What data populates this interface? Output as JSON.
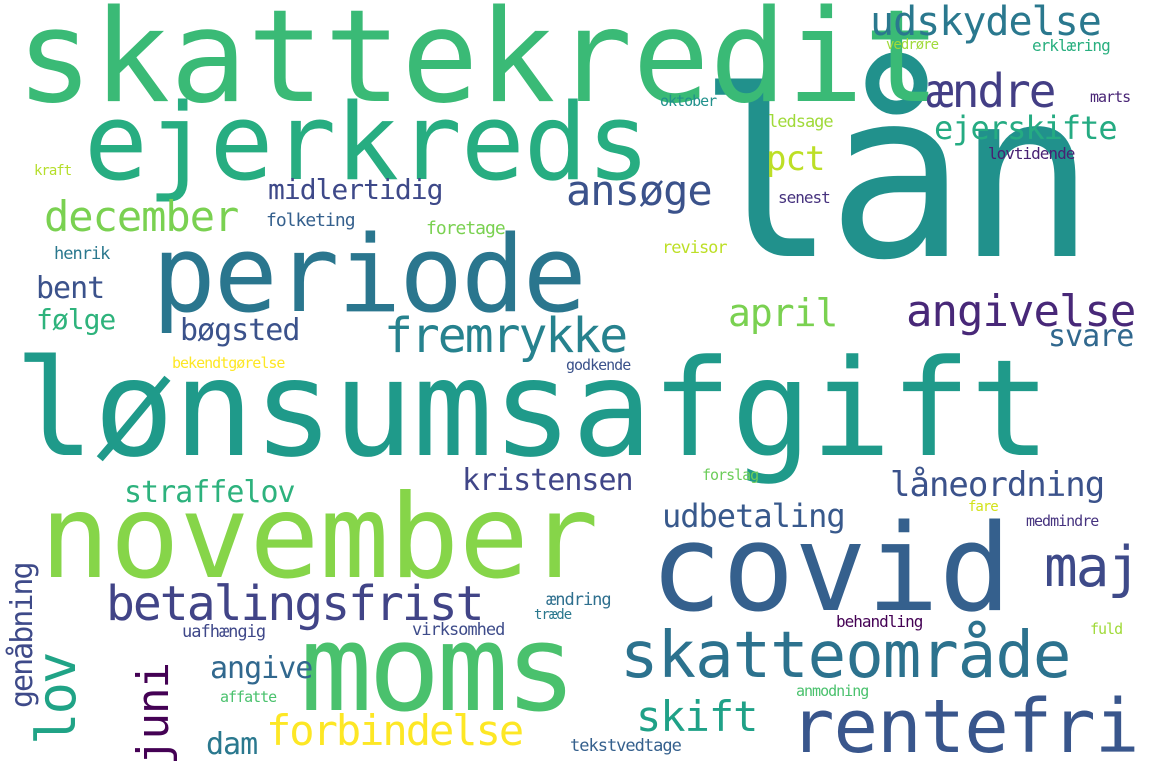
{
  "words": {
    "laan": {
      "text": "lån",
      "color": "#21918c"
    },
    "lonsumsafgift": {
      "text": "lønsumsafgift",
      "color": "#1f9a8a"
    },
    "skattekredit": {
      "text": "skattekredit",
      "color": "#3aba76"
    },
    "november": {
      "text": "november",
      "color": "#86d549"
    },
    "covid": {
      "text": "covid",
      "color": "#35608d"
    },
    "ejerkreds": {
      "text": "ejerkreds",
      "color": "#27ad81"
    },
    "periode": {
      "text": "periode",
      "color": "#2a768e"
    },
    "moms": {
      "text": "moms",
      "color": "#4ac16d"
    },
    "skatteomraade": {
      "text": "skatteområde",
      "color": "#2c728e"
    },
    "rentefri": {
      "text": "rentefri",
      "color": "#39568c"
    },
    "betalingsfrist": {
      "text": "betalingsfrist",
      "color": "#414487"
    },
    "fremrykke": {
      "text": "fremrykke",
      "color": "#26828e"
    },
    "udskydelse": {
      "text": "udskydelse",
      "color": "#2a788e"
    },
    "aendre": {
      "text": "ændre",
      "color": "#433e85"
    },
    "december": {
      "text": "december",
      "color": "#7ad151"
    },
    "ansoege": {
      "text": "ansøge",
      "color": "#3b528b"
    },
    "angivelse": {
      "text": "angivelse",
      "color": "#482878"
    },
    "maj": {
      "text": "maj",
      "color": "#3e4a89"
    },
    "lov": {
      "text": "lov",
      "color": "#20a386"
    },
    "juni": {
      "text": "juni",
      "color": "#440154"
    },
    "forbindelse": {
      "text": "forbindelse",
      "color": "#fde725"
    },
    "skift": {
      "text": "skift",
      "color": "#1fa187"
    },
    "ejerskifte": {
      "text": "ejerskifte",
      "color": "#25ab82"
    },
    "pct": {
      "text": "pct",
      "color": "#bddf26"
    },
    "april": {
      "text": "april",
      "color": "#7ad151"
    },
    "laaneordning": {
      "text": "låneordning",
      "color": "#3b528b"
    },
    "kristensen": {
      "text": "kristensen",
      "color": "#404688"
    },
    "straffelov": {
      "text": "straffelov",
      "color": "#2db27d"
    },
    "udbetaling": {
      "text": "udbetaling",
      "color": "#38598c"
    },
    "midlertidig": {
      "text": "midlertidig",
      "color": "#3e4989"
    },
    "bent": {
      "text": "bent",
      "color": "#3b528b"
    },
    "foelge": {
      "text": "følge",
      "color": "#2eb37c"
    },
    "boegsted": {
      "text": "bøgsted",
      "color": "#3b528b"
    },
    "angive": {
      "text": "angive",
      "color": "#31688e"
    },
    "dam": {
      "text": "dam",
      "color": "#2a788e"
    },
    "svare": {
      "text": "svare",
      "color": "#31688e"
    },
    "genaabning": {
      "text": "genåbning",
      "color": "#3e4a89"
    },
    "folketing": {
      "text": "folketing",
      "color": "#35608d"
    },
    "foretage": {
      "text": "foretage",
      "color": "#7ad151"
    },
    "henrik": {
      "text": "henrik",
      "color": "#2a788e"
    },
    "revisor": {
      "text": "revisor",
      "color": "#bddf26"
    },
    "ledsage": {
      "text": "ledsage",
      "color": "#a0da39"
    },
    "oktober": {
      "text": "oktober",
      "color": "#21918c"
    },
    "senest": {
      "text": "senest",
      "color": "#46327e"
    },
    "lovtidende": {
      "text": "lovtidende",
      "color": "#482173"
    },
    "marts": {
      "text": "marts",
      "color": "#482475"
    },
    "vedroere": {
      "text": "vedrøre",
      "color": "#a0da39"
    },
    "erklaering": {
      "text": "erklæring",
      "color": "#29af7f"
    },
    "kraft": {
      "text": "kraft",
      "color": "#b5de2b"
    },
    "bekendtgoerelse": {
      "text": "bekendtgørelse",
      "color": "#fde725"
    },
    "godkende": {
      "text": "godkende",
      "color": "#3b528b"
    },
    "forslag": {
      "text": "forslag",
      "color": "#6ccd5a"
    },
    "fare": {
      "text": "fare",
      "color": "#d2e21b"
    },
    "medmindre": {
      "text": "medmindre",
      "color": "#46337f"
    },
    "aendring": {
      "text": "ændring",
      "color": "#2e6f8e"
    },
    "traede": {
      "text": "træde",
      "color": "#2a788e"
    },
    "uafhaengig": {
      "text": "uafhængig",
      "color": "#3f4889"
    },
    "virksomhed": {
      "text": "virksomhed",
      "color": "#3e4c8a"
    },
    "behandling": {
      "text": "behandling",
      "color": "#440154"
    },
    "fuld": {
      "text": "fuld",
      "color": "#a0da39"
    },
    "affatte": {
      "text": "affatte",
      "color": "#4ac16d"
    },
    "anmodning": {
      "text": "anmodning",
      "color": "#4ac16d"
    },
    "tekstvedtage": {
      "text": "tekstvedtage",
      "color": "#35608d"
    }
  }
}
